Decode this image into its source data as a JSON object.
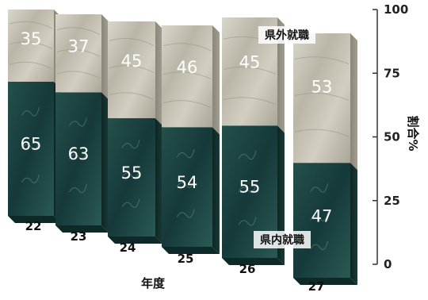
{
  "chart_data": {
    "type": "bar",
    "stacked": true,
    "categories": [
      "22",
      "23",
      "24",
      "25",
      "26",
      "27"
    ],
    "series": [
      {
        "name": "県内就職",
        "values": [
          65,
          63,
          55,
          54,
          55,
          47
        ]
      },
      {
        "name": "県外就職",
        "values": [
          35,
          37,
          45,
          46,
          45,
          53
        ]
      }
    ],
    "xlabel": "年度",
    "ylabel": "割合%",
    "ylim": [
      0,
      100
    ],
    "yticks": [
      "0",
      "25",
      "50",
      "75",
      "100"
    ],
    "colors": {
      "lower_segment": "#1f4a46",
      "upper_segment": "#c4c2b4"
    }
  }
}
